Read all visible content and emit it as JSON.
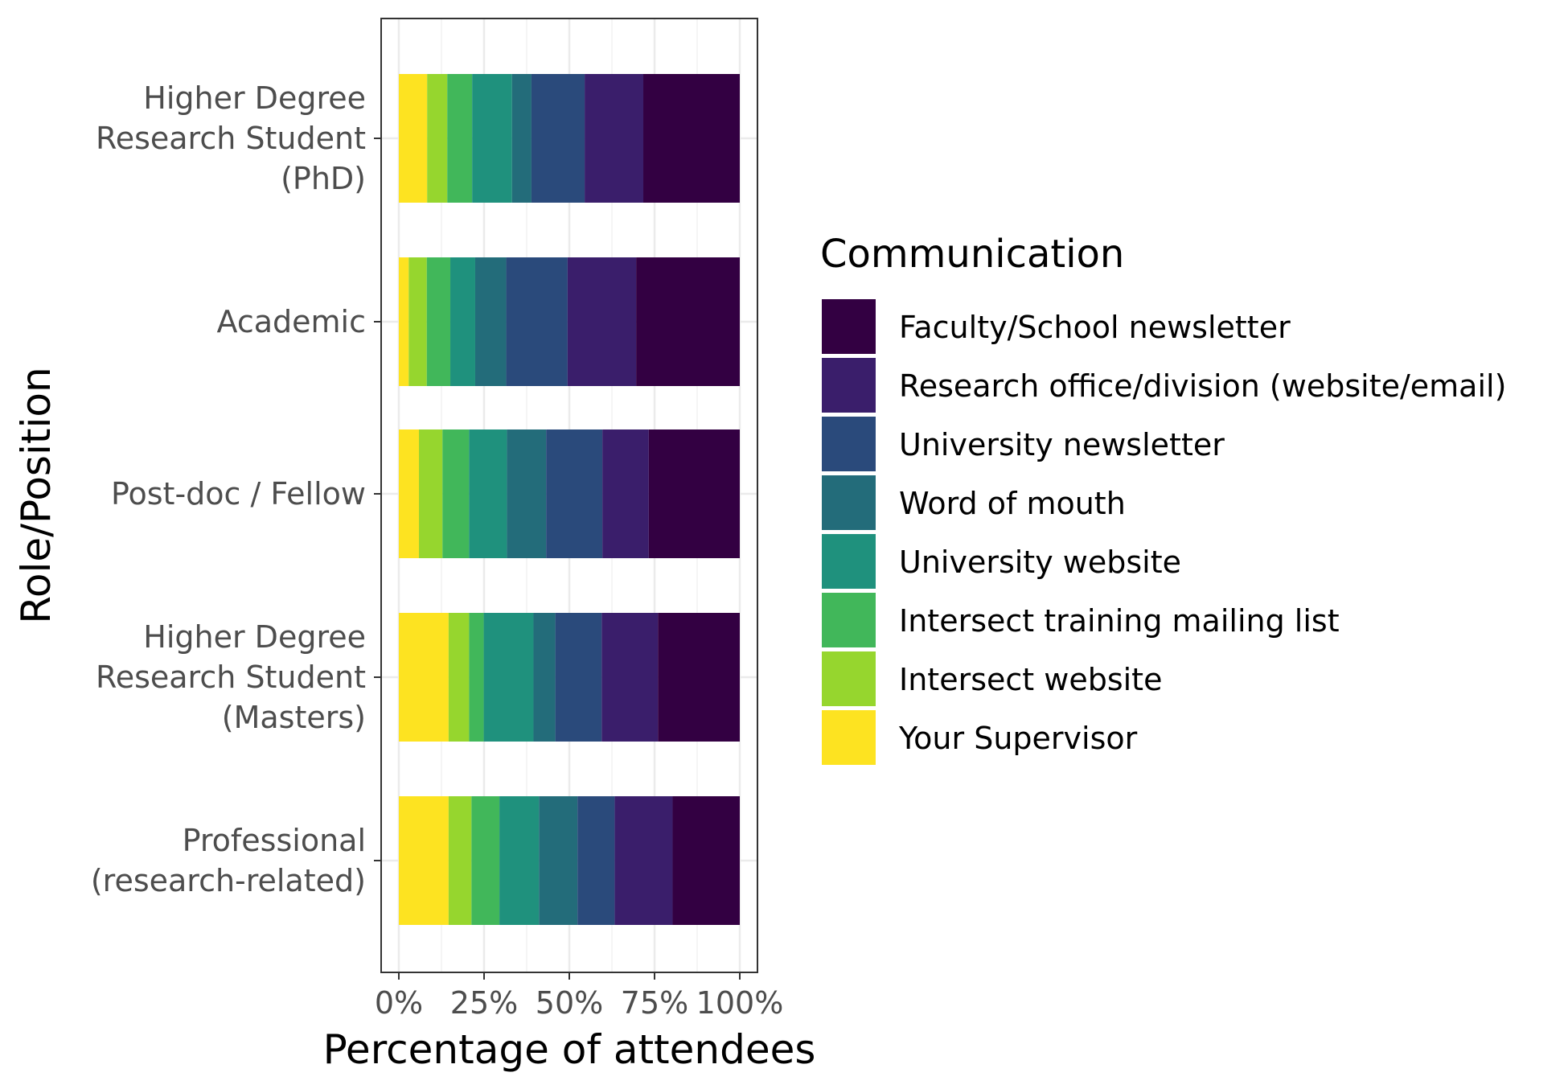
{
  "chart_data": {
    "type": "bar",
    "orientation": "horizontal",
    "stacked": "percent",
    "xlabel": "Percentage of attendees",
    "ylabel": "Role/Position",
    "xlim": [
      0,
      100
    ],
    "x_ticks": [
      "0%",
      "25%",
      "50%",
      "75%",
      "100%"
    ],
    "grid": true,
    "legend_title": "Communication",
    "legend_position": "right",
    "categories": [
      [
        "Higher Degree",
        "Research Student",
        "(PhD)"
      ],
      [
        "Academic"
      ],
      [
        "Post-doc / Fellow"
      ],
      [
        "Higher Degree",
        "Research Student",
        "(Masters)"
      ],
      [
        "Professional",
        "(research-related)"
      ]
    ],
    "series": [
      {
        "name": "Your Supervisor",
        "color": "#FDE725",
        "values": [
          8.3,
          2.9,
          5.9,
          14.6,
          14.6
        ]
      },
      {
        "name": "Intersect website",
        "color": "#95D840",
        "values": [
          5.9,
          5.3,
          6.9,
          6.0,
          6.7
        ]
      },
      {
        "name": "Intersect training mailing list",
        "color": "#3FBC73",
        "values": [
          7.3,
          6.9,
          7.8,
          4.3,
          8.2
        ]
      },
      {
        "name": "University website",
        "color": "#1F9E89",
        "values": [
          11.7,
          7.3,
          11.1,
          14.6,
          11.6
        ]
      },
      {
        "name": "Word of mouth",
        "color": "#25858E",
        "values": [
          5.7,
          9.1,
          11.5,
          6.4,
          11.3
        ]
      },
      {
        "name": "University newsletter",
        "color": "#2D708E",
        "values": [
          15.6,
          18.0,
          16.5,
          13.6,
          10.9
        ]
      },
      {
        "name": "Research office/division (website/email)",
        "color": "#482878",
        "values": [
          17.2,
          20.1,
          13.6,
          16.5,
          17.0
        ]
      },
      {
        "name": "Faculty/School newsletter",
        "color": "#440154",
        "values": [
          28.3,
          30.4,
          26.7,
          24.0,
          19.7
        ]
      }
    ],
    "palette_display": {
      "Faculty/School newsletter": "#330042",
      "Research office/division (website/email)": "#3A1E6B",
      "University newsletter": "#2A4A7B",
      "Word of mouth": "#236C7A",
      "University website": "#1F917D",
      "Intersect training mailing list": "#41B75A",
      "Intersect website": "#96D62E",
      "Your Supervisor": "#FDE321"
    }
  }
}
